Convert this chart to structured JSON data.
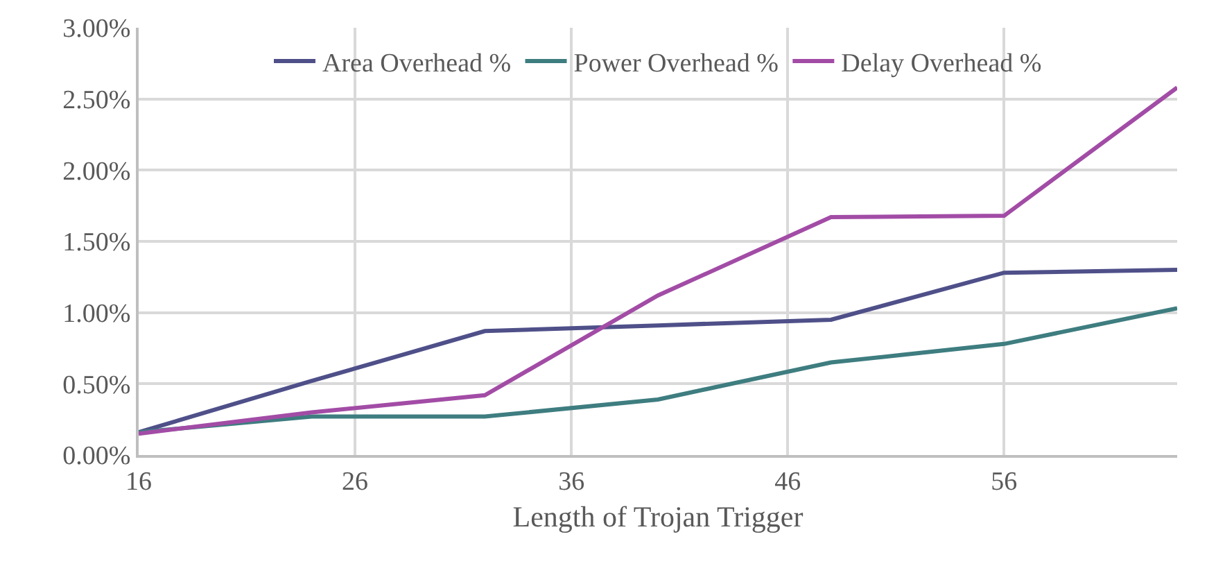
{
  "chart_data": {
    "type": "line",
    "xlabel": "Length of Trojan Trigger",
    "x": [
      16,
      24,
      32,
      40,
      48,
      56,
      64
    ],
    "series": [
      {
        "name": "Area Overhead %",
        "color": "#4f5089",
        "values": [
          0.16,
          0.52,
          0.87,
          0.91,
          0.95,
          1.28,
          1.3
        ]
      },
      {
        "name": "Power Overhead %",
        "color": "#3e7d80",
        "values": [
          0.16,
          0.27,
          0.27,
          0.39,
          0.65,
          0.78,
          1.03
        ]
      },
      {
        "name": "Delay Overhead %",
        "color": "#a24ca6",
        "values": [
          0.15,
          0.3,
          0.42,
          1.12,
          1.67,
          1.68,
          2.58
        ]
      }
    ],
    "xlim": [
      16,
      64
    ],
    "xticks": [
      16,
      26,
      36,
      46,
      56
    ],
    "ylim": [
      0,
      3
    ],
    "yticks": [
      {
        "value": 0,
        "label": "0.00%"
      },
      {
        "value": 0.5,
        "label": "0.50%"
      },
      {
        "value": 1,
        "label": "1.00%"
      },
      {
        "value": 1.5,
        "label": "1.50%"
      },
      {
        "value": 2,
        "label": "2.00%"
      },
      {
        "value": 2.5,
        "label": "2.50%"
      },
      {
        "value": 3,
        "label": "3.00%"
      }
    ],
    "grid": true,
    "legend": "top",
    "marker": "none",
    "line_style": "solid"
  }
}
